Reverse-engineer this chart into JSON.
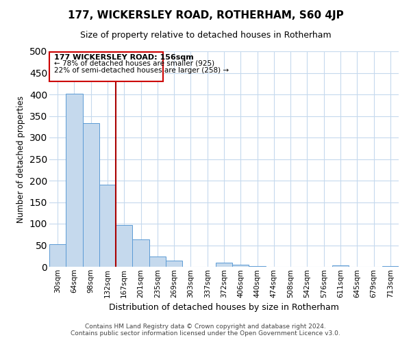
{
  "title": "177, WICKERSLEY ROAD, ROTHERHAM, S60 4JP",
  "subtitle": "Size of property relative to detached houses in Rotherham",
  "xlabel": "Distribution of detached houses by size in Rotherham",
  "ylabel": "Number of detached properties",
  "bar_labels": [
    "30sqm",
    "64sqm",
    "98sqm",
    "132sqm",
    "167sqm",
    "201sqm",
    "235sqm",
    "269sqm",
    "303sqm",
    "337sqm",
    "372sqm",
    "406sqm",
    "440sqm",
    "474sqm",
    "508sqm",
    "542sqm",
    "576sqm",
    "611sqm",
    "645sqm",
    "679sqm",
    "713sqm"
  ],
  "bar_values": [
    53,
    401,
    334,
    191,
    97,
    63,
    24,
    15,
    0,
    0,
    10,
    5,
    1,
    0,
    0,
    0,
    0,
    3,
    0,
    0,
    2
  ],
  "bar_color": "#c5d9ed",
  "bar_edge_color": "#5b9bd5",
  "vline_x": 3.5,
  "vline_color": "#aa0000",
  "ylim": [
    0,
    500
  ],
  "yticks": [
    0,
    50,
    100,
    150,
    200,
    250,
    300,
    350,
    400,
    450,
    500
  ],
  "annotation_title": "177 WICKERSLEY ROAD: 156sqm",
  "annotation_line1": "← 78% of detached houses are smaller (925)",
  "annotation_line2": "22% of semi-detached houses are larger (258) →",
  "footer_line1": "Contains HM Land Registry data © Crown copyright and database right 2024.",
  "footer_line2": "Contains public sector information licensed under the Open Government Licence v3.0.",
  "bg_color": "#ffffff",
  "grid_color": "#c5d9ed"
}
